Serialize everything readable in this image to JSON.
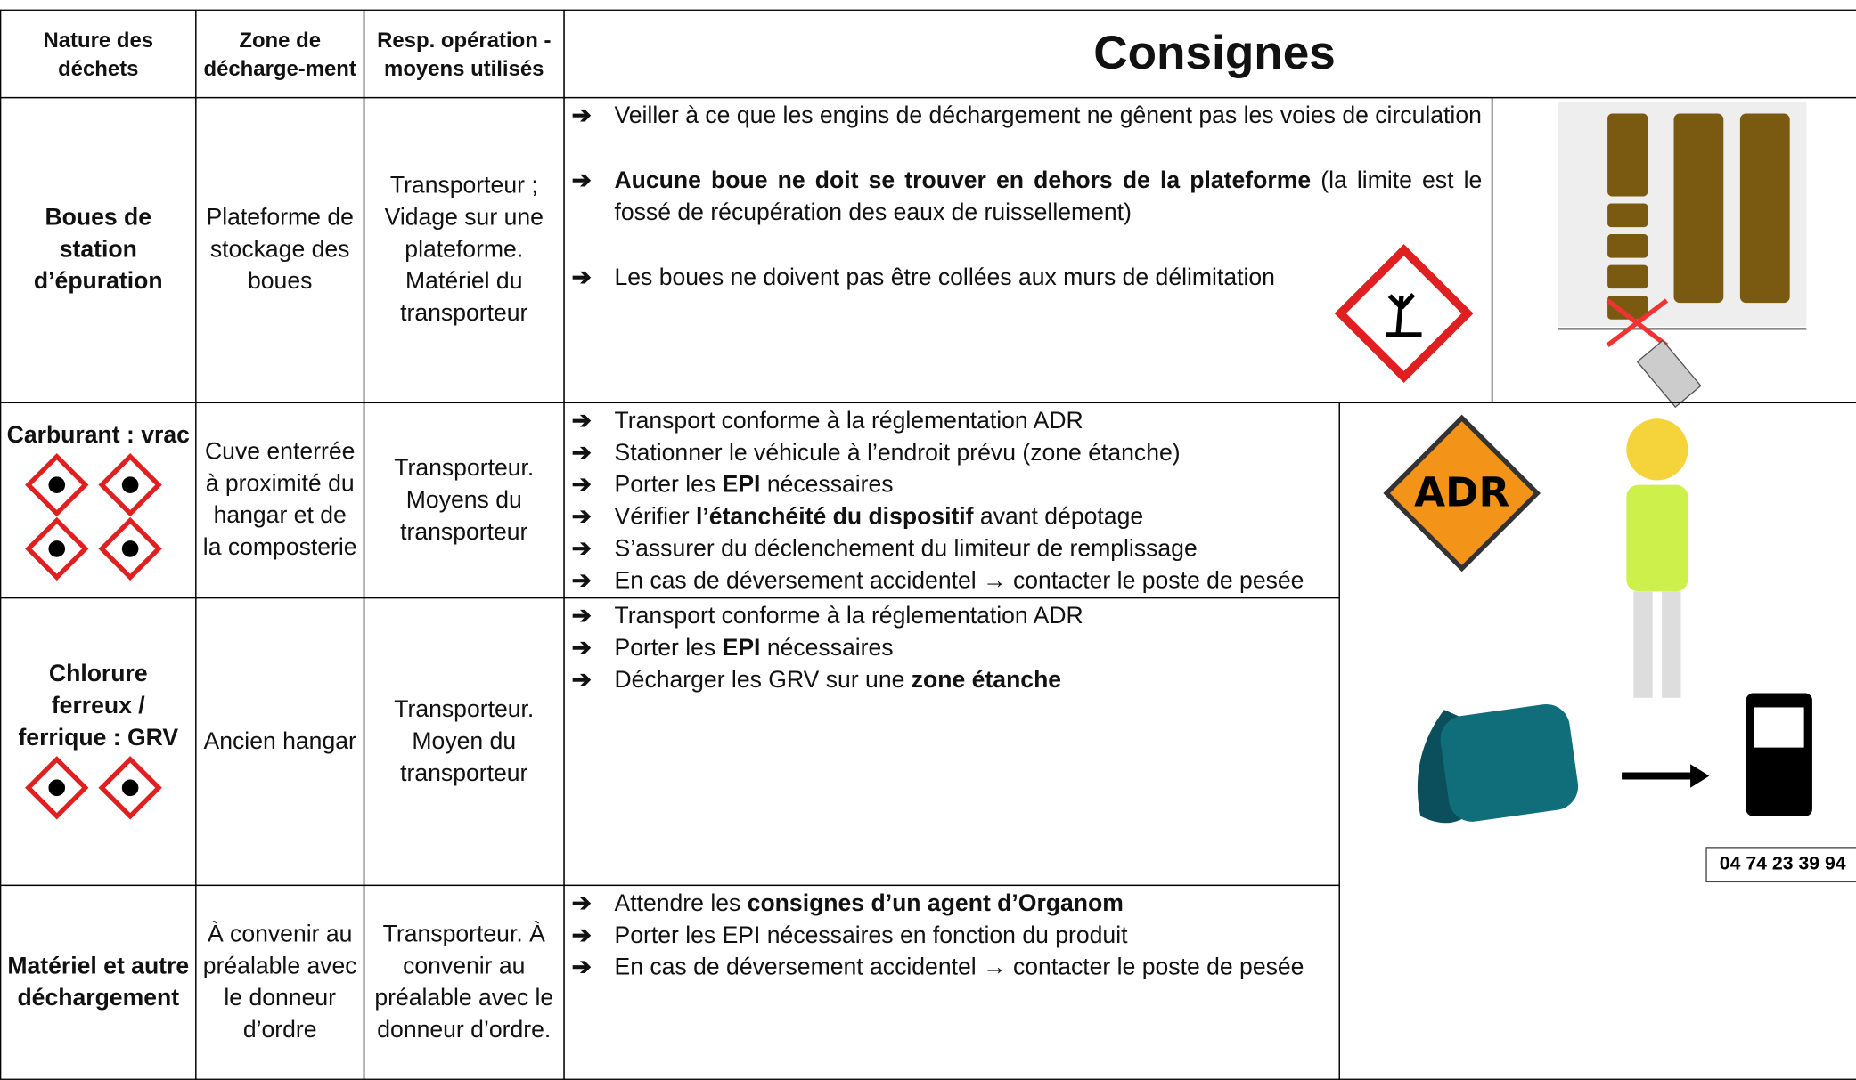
{
  "bullet": "➔",
  "table": {
    "header": [
      "Nature des déchets",
      "Zone de décharge-ment",
      "Resp. opération - moyens utilisés",
      "Consignes"
    ],
    "rows": [
      {
        "nature": "Boues de station d’épuration",
        "zone": "Plateforme de stockage des boues",
        "resp": "Transporteur ; Vidage sur une plateforme. Matériel du transporteur",
        "consignes": [
          [
            {
              "text": "Veiller à ce que les engins de déchargement ne gênent pas les voies de circulation"
            }
          ],
          [
            {
              "text": "Aucune boue ne doit se trouver en dehors de la plateforme",
              "bold": true
            },
            {
              "text": " (la limite est le fossé de récupération des eaux de ruissellement)"
            }
          ],
          [
            {
              "text": "Les boues ne doivent pas être collées aux murs de délimitation"
            }
          ]
        ]
      },
      {
        "nature": "Carburant : vrac",
        "zone": "Cuve enterrée à proximité du hangar et de la composterie",
        "resp": "Transporteur. Moyens du transporteur",
        "consignes": [
          [
            {
              "text": "Transport conforme à la réglementation ADR"
            }
          ],
          [
            {
              "text": "Stationner le véhicule à l’endroit prévu (zone étanche)"
            }
          ],
          [
            {
              "text": "Porter les "
            },
            {
              "text": "EPI",
              "bold": true
            },
            {
              "text": " nécessaires"
            }
          ],
          [
            {
              "text": "Vérifier "
            },
            {
              "text": "l’étanchéité du dispositif",
              "bold": true
            },
            {
              "text": " avant dépotage"
            }
          ],
          [
            {
              "text": "S’assurer du déclenchement du limiteur de remplissage"
            }
          ],
          [
            {
              "text": "En cas de déversement accidentel → contacter le poste de pesée"
            }
          ]
        ]
      },
      {
        "nature": "Chlorure ferreux / ferrique : GRV",
        "zone": "Ancien hangar",
        "resp": "Transporteur. Moyen du transporteur",
        "consignes": [
          [
            {
              "text": "Transport conforme à la réglementation ADR"
            }
          ],
          [
            {
              "text": "Porter les "
            },
            {
              "text": "EPI",
              "bold": true
            },
            {
              "text": " nécessaires"
            }
          ],
          [
            {
              "text": "Décharger les GRV sur une "
            },
            {
              "text": "zone étanche",
              "bold": true
            }
          ]
        ]
      },
      {
        "nature": "Matériel et autre déchargement",
        "zone": "À convenir au préalable avec le donneur d’ordre",
        "resp": "Transporteur. À convenir au préalable avec le donneur d’ordre.",
        "consignes": [
          [
            {
              "text": "Attendre les "
            },
            {
              "text": "consignes d’un agent d’Organom",
              "bold": true
            }
          ],
          [
            {
              "text": "Porter les EPI nécessaires en fonction du produit"
            }
          ],
          [
            {
              "text": "En cas de déversement accidentel → contacter le poste de pesée"
            }
          ]
        ]
      }
    ]
  },
  "images": {
    "adr": "ADR",
    "phone": "04 74 23 39 94"
  }
}
